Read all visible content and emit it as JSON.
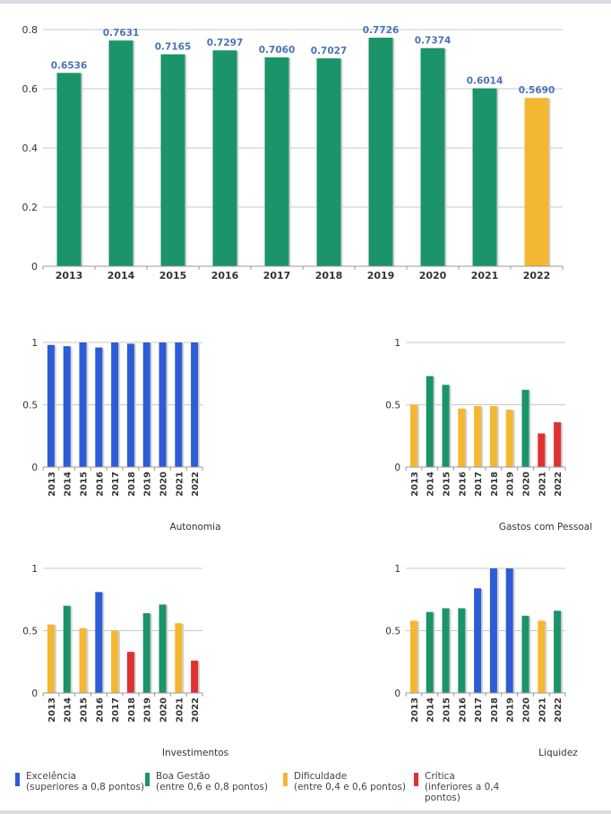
{
  "colors": {
    "excelencia": "#2e5bd6",
    "boa_gestao": "#1a9468",
    "dificuldade": "#f4b733",
    "critica": "#e03131",
    "grid": "#c8c8c8",
    "axis_text": "#333333",
    "value_label": "#4a72b8"
  },
  "legend": [
    {
      "key": "excelencia",
      "line1": "Excelência",
      "line2": "(superiores a 0,8 pontos)",
      "line3": ""
    },
    {
      "key": "boa_gestao",
      "line1": "Boa Gestão",
      "line2": "(entre 0,6 e 0,8 pontos)",
      "line3": ""
    },
    {
      "key": "dificuldade",
      "line1": "Dificuldade",
      "line2": "(entre 0,4 e 0,6 pontos)",
      "line3": ""
    },
    {
      "key": "critica",
      "line1": "Crítica",
      "line2": "(inferiores a 0,4",
      "line3": "pontos)"
    }
  ],
  "chart_data": [
    {
      "type": "bar",
      "title": "",
      "categories": [
        "2013",
        "2014",
        "2015",
        "2016",
        "2017",
        "2018",
        "2019",
        "2020",
        "2021",
        "2022"
      ],
      "values": [
        0.6536,
        0.7631,
        0.7165,
        0.7297,
        0.706,
        0.7027,
        0.7726,
        0.7374,
        0.6014,
        0.569
      ],
      "value_labels": [
        "0.6536",
        "0.7631",
        "0.7165",
        "0.7297",
        "0.7060",
        "0.7027",
        "0.7726",
        "0.7374",
        "0.6014",
        "0.5690"
      ],
      "ylim": [
        0,
        0.8
      ],
      "yticks": [
        "0",
        "0.2",
        "0.4",
        "0.6",
        "0.8"
      ],
      "ytick_values": [
        0,
        0.2,
        0.4,
        0.6,
        0.8
      ],
      "grid": true
    },
    {
      "type": "bar",
      "title": "Autonomia",
      "categories": [
        "2013",
        "2014",
        "2015",
        "2016",
        "2017",
        "2018",
        "2019",
        "2020",
        "2021",
        "2022"
      ],
      "values": [
        0.98,
        0.97,
        1.0,
        0.96,
        1.0,
        0.99,
        1.0,
        1.0,
        1.0,
        1.0
      ],
      "ylim": [
        0,
        1
      ],
      "yticks": [
        "0",
        "0.5",
        "1"
      ],
      "ytick_values": [
        0,
        0.5,
        1
      ],
      "grid": true
    },
    {
      "type": "bar",
      "title": "Gastos com Pessoal",
      "categories": [
        "2013",
        "2014",
        "2015",
        "2016",
        "2017",
        "2018",
        "2019",
        "2020",
        "2021",
        "2022"
      ],
      "values": [
        0.5,
        0.73,
        0.66,
        0.47,
        0.49,
        0.49,
        0.46,
        0.62,
        0.27,
        0.36
      ],
      "ylim": [
        0,
        1
      ],
      "yticks": [
        "0",
        "0.5",
        "1"
      ],
      "ytick_values": [
        0,
        0.5,
        1
      ],
      "grid": true
    },
    {
      "type": "bar",
      "title": "Investimentos",
      "categories": [
        "2013",
        "2014",
        "2015",
        "2016",
        "2017",
        "2018",
        "2019",
        "2020",
        "2021",
        "2022"
      ],
      "values": [
        0.55,
        0.7,
        0.52,
        0.81,
        0.5,
        0.33,
        0.64,
        0.71,
        0.56,
        0.26
      ],
      "ylim": [
        0,
        1
      ],
      "yticks": [
        "0",
        "0.5",
        "1"
      ],
      "ytick_values": [
        0,
        0.5,
        1
      ],
      "grid": true
    },
    {
      "type": "bar",
      "title": "Liquidez",
      "categories": [
        "2013",
        "2014",
        "2015",
        "2016",
        "2017",
        "2018",
        "2019",
        "2020",
        "2021",
        "2022"
      ],
      "values": [
        0.58,
        0.65,
        0.68,
        0.68,
        0.84,
        1.0,
        1.0,
        0.62,
        0.58,
        0.66
      ],
      "ylim": [
        0,
        1
      ],
      "yticks": [
        "0",
        "0.5",
        "1"
      ],
      "ytick_values": [
        0,
        0.5,
        1
      ],
      "grid": true
    }
  ]
}
